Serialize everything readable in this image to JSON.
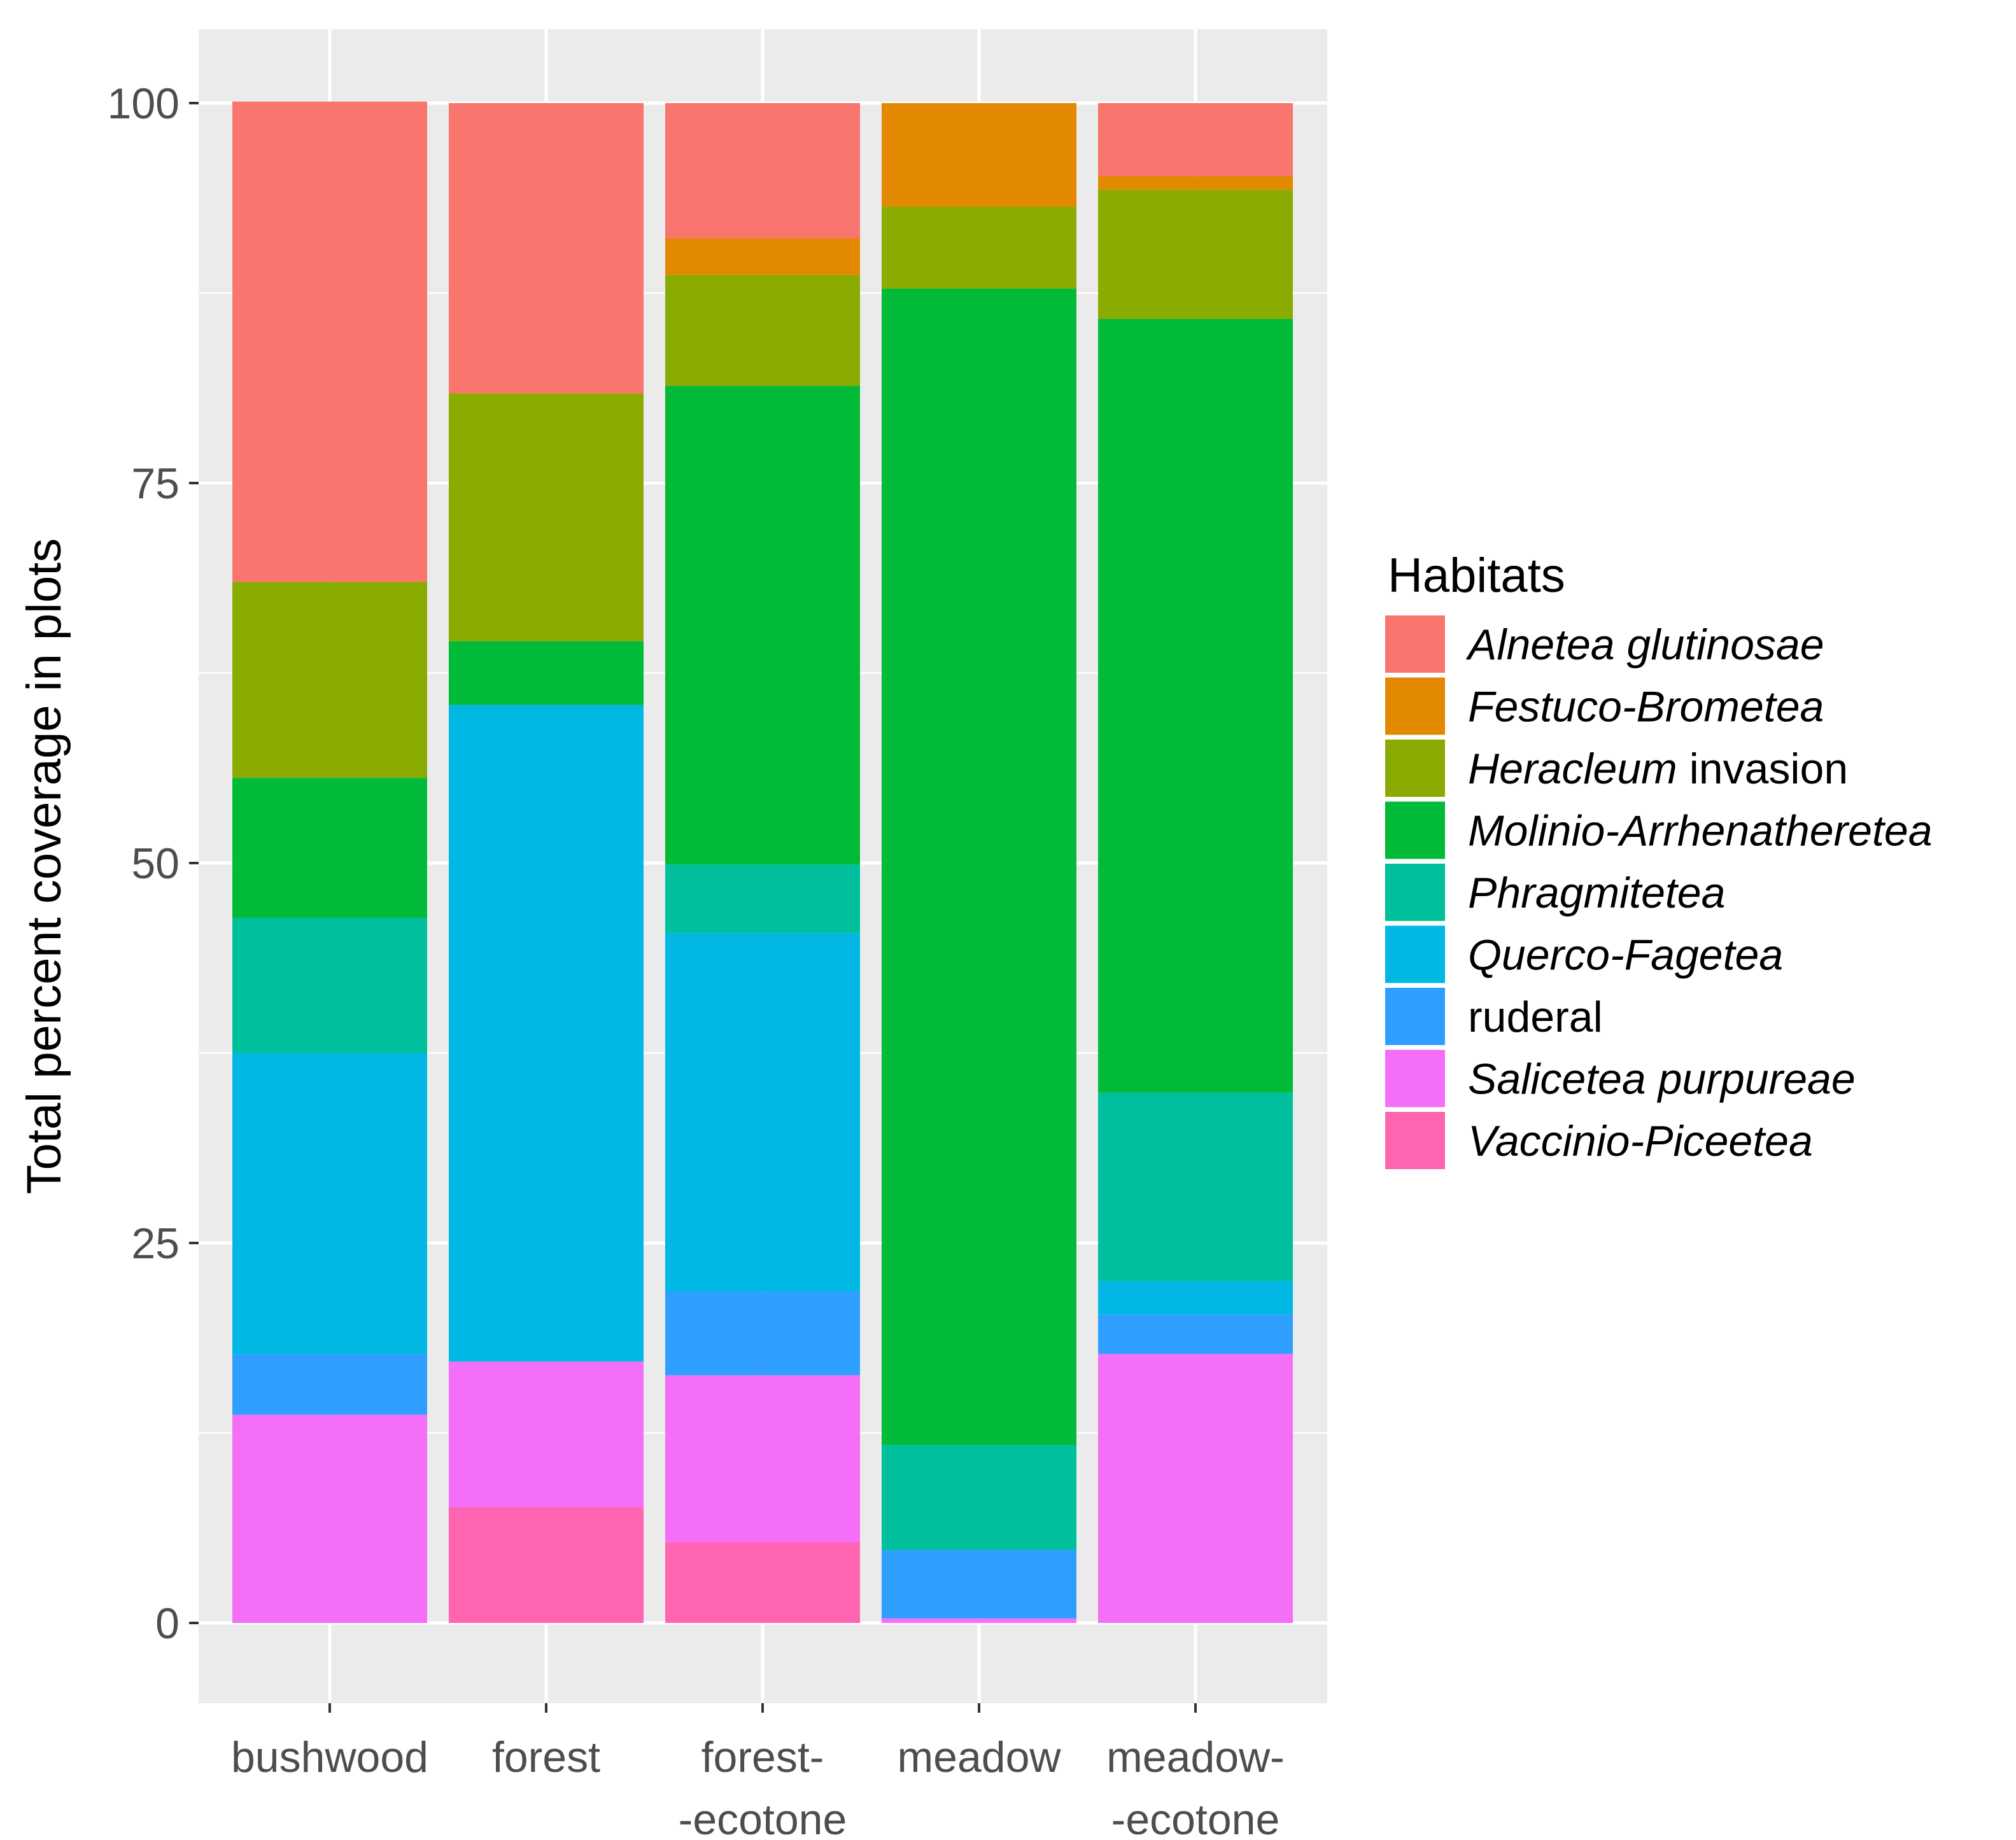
{
  "chart_data": {
    "type": "bar",
    "stacked": true,
    "title": "",
    "xlabel": "",
    "ylabel": "Total percent coverage in plots",
    "ylim": [
      -5,
      105
    ],
    "yticks": [
      "0",
      "25",
      "50",
      "75",
      "100"
    ],
    "ytick_values": [
      0,
      25,
      50,
      75,
      100
    ],
    "grid": true,
    "categories": [
      {
        "line1": "bushwood",
        "line2": ""
      },
      {
        "line1": "forest",
        "line2": ""
      },
      {
        "line1": "forest-",
        "line2": "-ecotone"
      },
      {
        "line1": "meadow",
        "line2": ""
      },
      {
        "line1": "meadow-",
        "line2": "-ecotone"
      }
    ],
    "legend": {
      "title": "Habitats",
      "position": "right",
      "entries": [
        {
          "italic": "Alnetea glutinosae",
          "plain": ""
        },
        {
          "italic": "Festuco-Brometea",
          "plain": ""
        },
        {
          "italic": "Heracleum",
          "plain": " invasion"
        },
        {
          "italic": "Molinio-Arrhenatheretea",
          "plain": ""
        },
        {
          "italic": "Phragmitetea",
          "plain": ""
        },
        {
          "italic": "Querco-Fagetea",
          "plain": ""
        },
        {
          "italic": "",
          "plain": "ruderal"
        },
        {
          "italic": "Salicetea purpureae",
          "plain": ""
        },
        {
          "italic": "Vaccinio-Piceetea",
          "plain": ""
        }
      ]
    },
    "series": [
      {
        "name": "Alnetea glutinosae",
        "color": "#F8766D",
        "values": [
          31.6,
          19.1,
          8.9,
          0,
          4.8
        ]
      },
      {
        "name": "Festuco-Brometea",
        "color": "#E38900",
        "values": [
          0,
          0,
          2.4,
          6.8,
          0.9
        ]
      },
      {
        "name": "Heracleum invasion",
        "color": "#8AAB00",
        "values": [
          12.9,
          16.3,
          7.3,
          5.4,
          8.5
        ]
      },
      {
        "name": "Molinio-Arrhenatheretea",
        "color": "#00BA38",
        "values": [
          9.2,
          4.2,
          31.5,
          76.1,
          50.9
        ]
      },
      {
        "name": "Phragmitetea",
        "color": "#00BF9D",
        "values": [
          8.9,
          0,
          4.5,
          6.9,
          12.4
        ]
      },
      {
        "name": "Querco-Fagetea",
        "color": "#00B8E3",
        "values": [
          19.8,
          43.2,
          23.6,
          0,
          2.2
        ]
      },
      {
        "name": "ruderal",
        "color": "#2E9FFF",
        "values": [
          4.0,
          0,
          5.5,
          4.5,
          2.6
        ]
      },
      {
        "name": "Salicetea purpureae",
        "color": "#F46EF7",
        "values": [
          13.7,
          9.6,
          11.0,
          0.3,
          17.7
        ]
      },
      {
        "name": "Vaccinio-Piceetea",
        "color": "#FF64B0",
        "values": [
          0,
          7.6,
          5.3,
          0,
          0
        ]
      }
    ]
  }
}
